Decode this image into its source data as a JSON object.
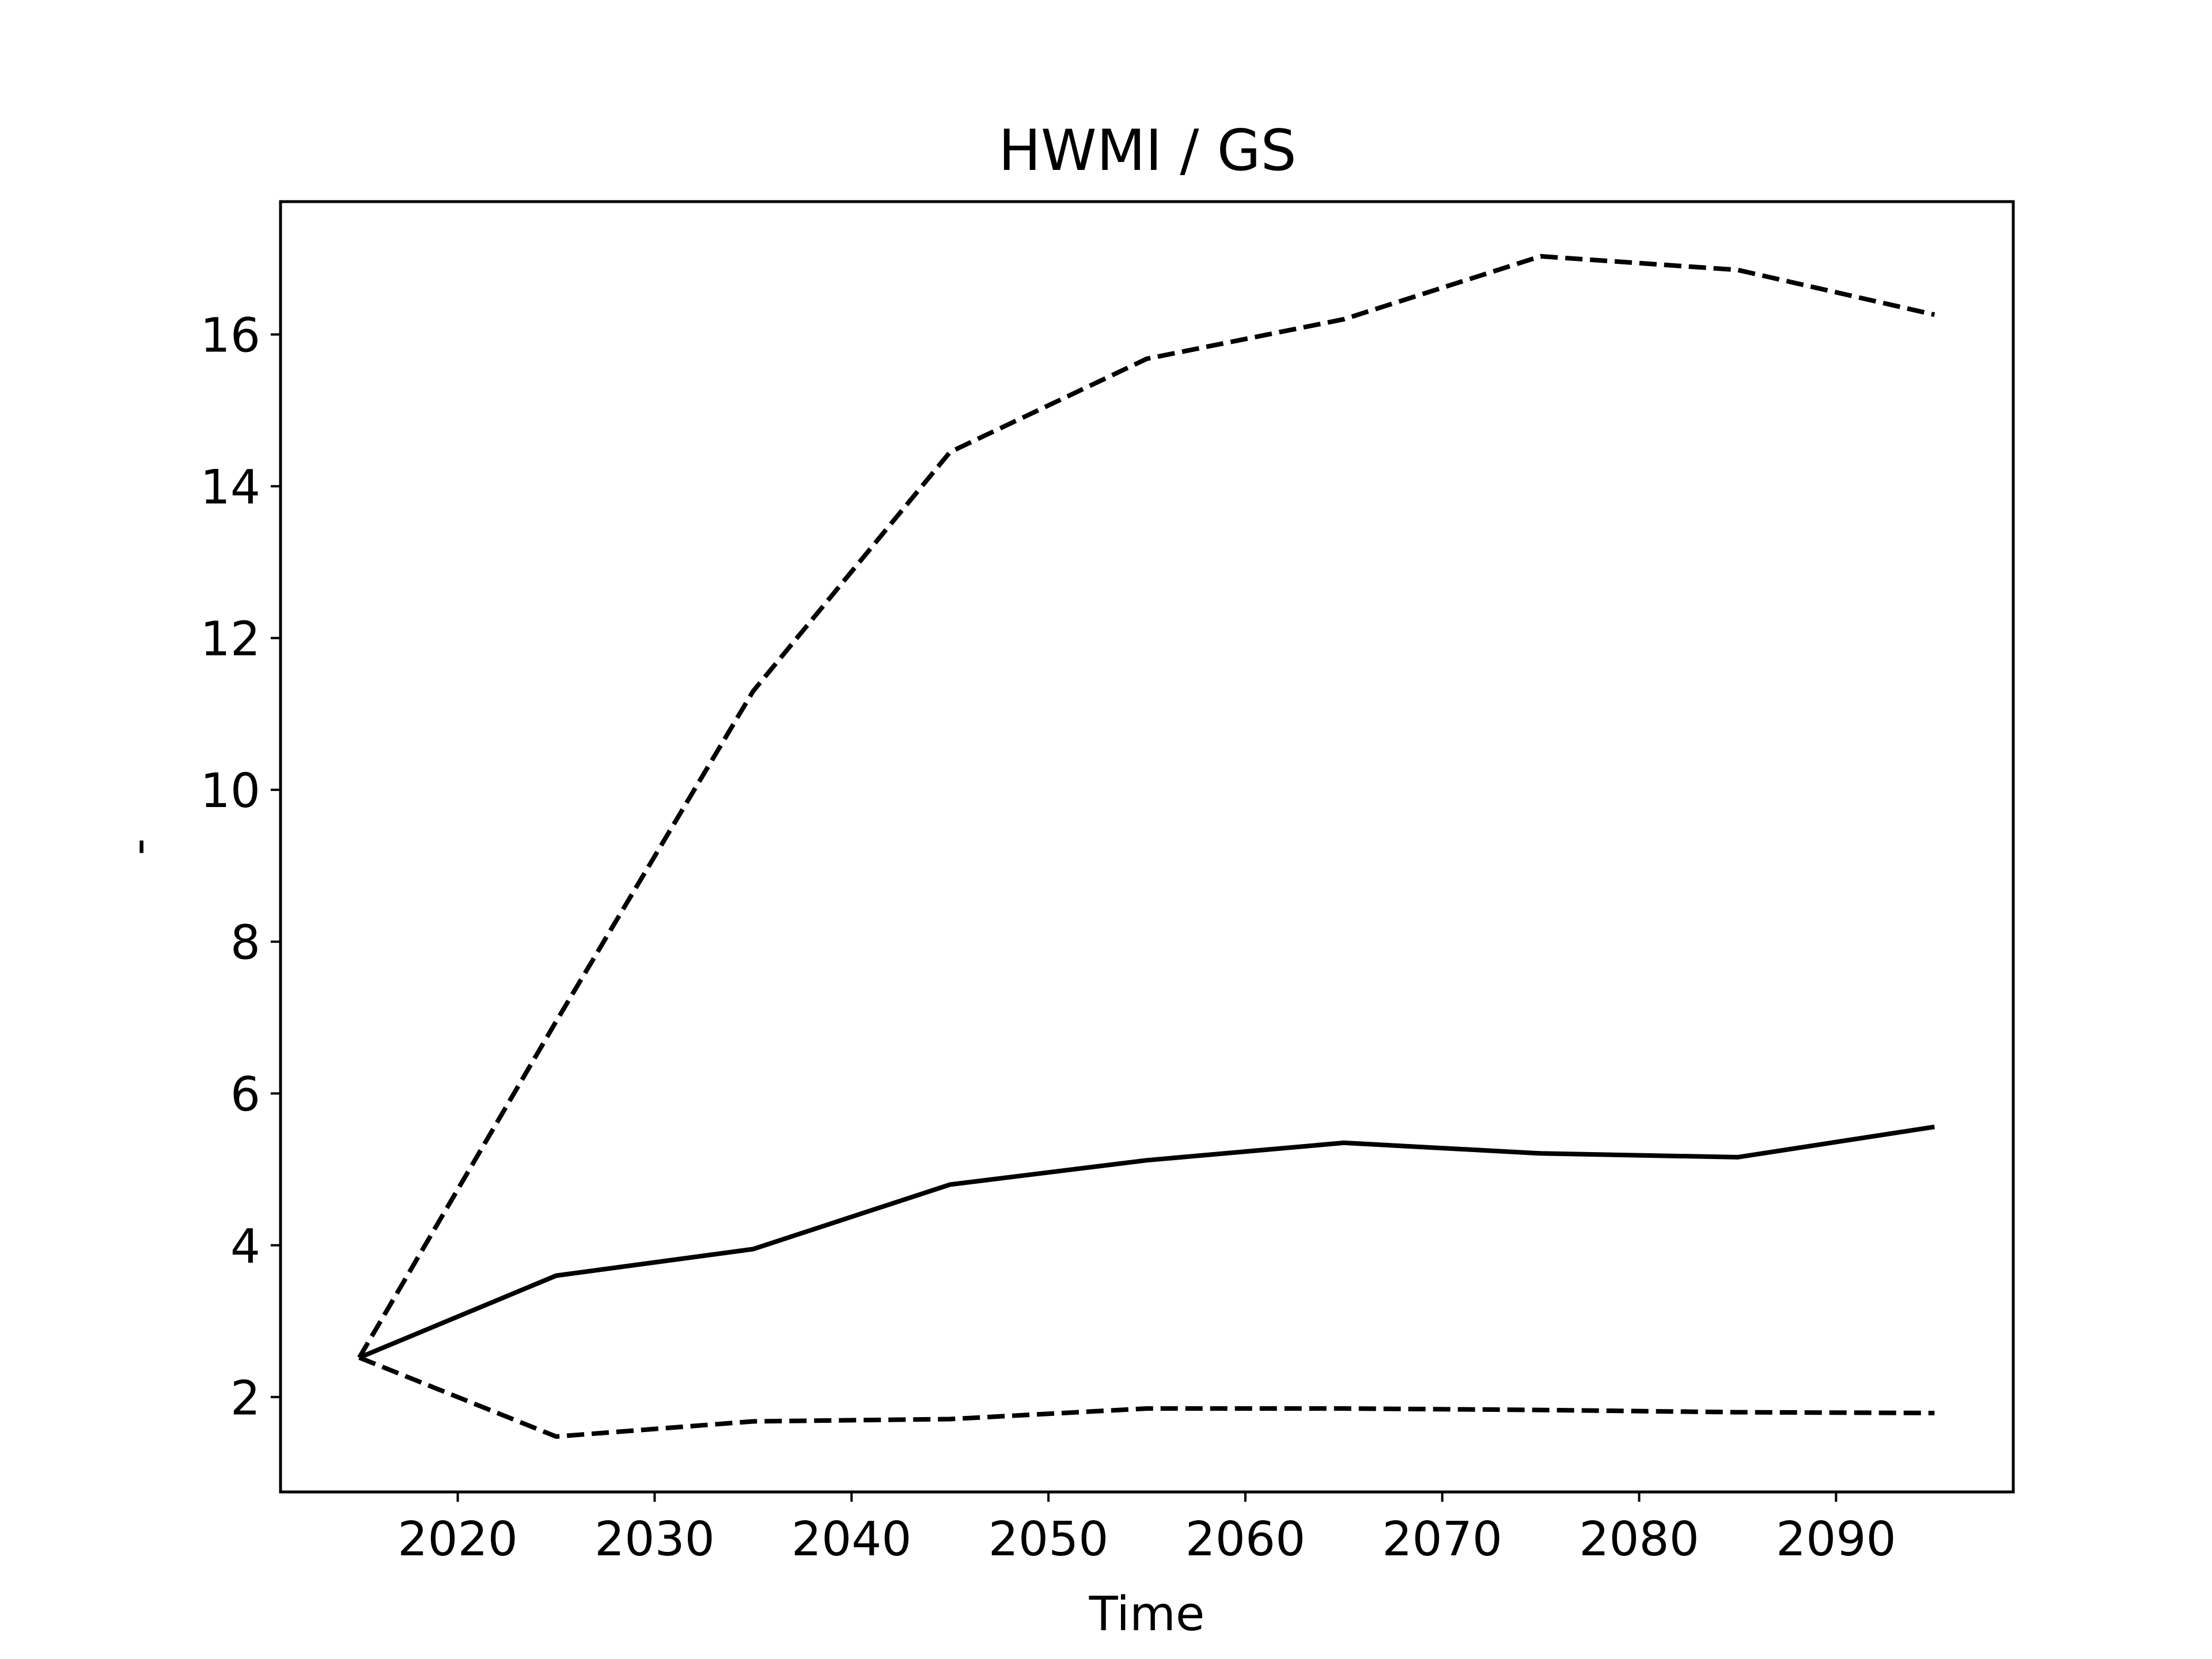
{
  "chart_data": {
    "type": "line",
    "title": "HWMI / GS",
    "xlabel": "Time",
    "ylabel": "-",
    "xlim": [
      2011,
      2099
    ],
    "ylim": [
      0.75,
      17.75
    ],
    "xticks": [
      2020,
      2030,
      2040,
      2050,
      2060,
      2070,
      2080,
      2090
    ],
    "yticks": [
      2,
      4,
      6,
      8,
      10,
      12,
      14,
      16
    ],
    "grid": false,
    "legend": "none",
    "line_color": "#000000",
    "x": [
      2015,
      2025,
      2035,
      2045,
      2055,
      2065,
      2075,
      2085,
      2095
    ],
    "series": [
      {
        "style": "solid",
        "values": [
          2.52,
          3.6,
          3.95,
          4.8,
          5.12,
          5.35,
          5.21,
          5.16,
          5.56
        ]
      },
      {
        "style": "dashed",
        "values": [
          2.52,
          6.95,
          11.3,
          14.45,
          15.68,
          16.2,
          17.03,
          16.85,
          16.26
        ]
      },
      {
        "style": "dashed",
        "values": [
          2.52,
          1.48,
          1.68,
          1.71,
          1.85,
          1.85,
          1.83,
          1.8,
          1.79
        ]
      }
    ]
  }
}
